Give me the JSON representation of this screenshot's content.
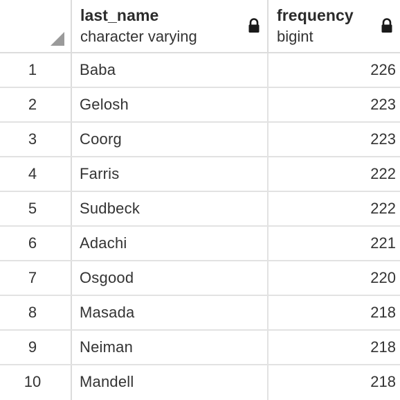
{
  "columns": {
    "name": {
      "title": "last_name",
      "type": "character varying",
      "lock_icon": "lock-icon"
    },
    "freq": {
      "title": "frequency",
      "type": "bigint",
      "lock_icon": "lock-icon"
    }
  },
  "rows": [
    {
      "num": "1",
      "last_name": "Baba",
      "frequency": "226"
    },
    {
      "num": "2",
      "last_name": "Gelosh",
      "frequency": "223"
    },
    {
      "num": "3",
      "last_name": "Coorg",
      "frequency": "223"
    },
    {
      "num": "4",
      "last_name": "Farris",
      "frequency": "222"
    },
    {
      "num": "5",
      "last_name": "Sudbeck",
      "frequency": "222"
    },
    {
      "num": "6",
      "last_name": "Adachi",
      "frequency": "221"
    },
    {
      "num": "7",
      "last_name": "Osgood",
      "frequency": "220"
    },
    {
      "num": "8",
      "last_name": "Masada",
      "frequency": "218"
    },
    {
      "num": "9",
      "last_name": "Neiman",
      "frequency": "218"
    },
    {
      "num": "10",
      "last_name": "Mandell",
      "frequency": "218"
    }
  ]
}
